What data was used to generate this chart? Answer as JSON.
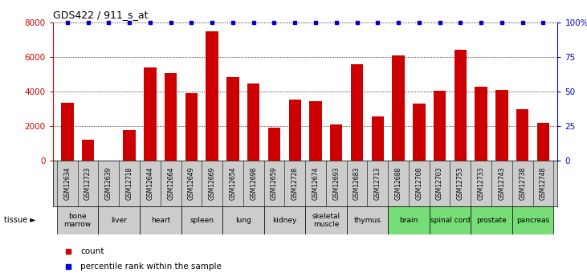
{
  "title": "GDS422 / 911_s_at",
  "samples": [
    "GSM12634",
    "GSM12723",
    "GSM12639",
    "GSM12718",
    "GSM12644",
    "GSM12664",
    "GSM12649",
    "GSM12669",
    "GSM12654",
    "GSM12698",
    "GSM12659",
    "GSM12728",
    "GSM12674",
    "GSM12693",
    "GSM12683",
    "GSM12713",
    "GSM12688",
    "GSM12708",
    "GSM12703",
    "GSM12753",
    "GSM12733",
    "GSM12743",
    "GSM12738",
    "GSM12748"
  ],
  "counts": [
    3350,
    1200,
    0,
    1750,
    5400,
    5050,
    3900,
    7450,
    4850,
    4450,
    1900,
    3550,
    3450,
    2100,
    5550,
    2550,
    6100,
    3300,
    4050,
    6400,
    4250,
    4100,
    2950,
    2200
  ],
  "percentiles": [
    100,
    100,
    100,
    100,
    100,
    100,
    100,
    100,
    100,
    100,
    100,
    100,
    100,
    100,
    100,
    100,
    100,
    100,
    100,
    100,
    100,
    100,
    100,
    100
  ],
  "tissues": [
    {
      "name": "bone\nmarrow",
      "start": 0,
      "end": 2,
      "color": "#cccccc"
    },
    {
      "name": "liver",
      "start": 2,
      "end": 4,
      "color": "#cccccc"
    },
    {
      "name": "heart",
      "start": 4,
      "end": 6,
      "color": "#cccccc"
    },
    {
      "name": "spleen",
      "start": 6,
      "end": 8,
      "color": "#cccccc"
    },
    {
      "name": "lung",
      "start": 8,
      "end": 10,
      "color": "#cccccc"
    },
    {
      "name": "kidney",
      "start": 10,
      "end": 12,
      "color": "#cccccc"
    },
    {
      "name": "skeletal\nmuscle",
      "start": 12,
      "end": 14,
      "color": "#cccccc"
    },
    {
      "name": "thymus",
      "start": 14,
      "end": 16,
      "color": "#cccccc"
    },
    {
      "name": "brain",
      "start": 16,
      "end": 18,
      "color": "#77dd77"
    },
    {
      "name": "spinal cord",
      "start": 18,
      "end": 20,
      "color": "#77dd77"
    },
    {
      "name": "prostate",
      "start": 20,
      "end": 22,
      "color": "#77dd77"
    },
    {
      "name": "pancreas",
      "start": 22,
      "end": 24,
      "color": "#77dd77"
    }
  ],
  "bar_color": "#cc0000",
  "percentile_color": "#0000cc",
  "ylim_left": [
    0,
    8000
  ],
  "ylim_right": [
    0,
    100
  ],
  "yticks_left": [
    0,
    2000,
    4000,
    6000,
    8000
  ],
  "yticks_right": [
    0,
    25,
    50,
    75,
    100
  ],
  "ytick_labels_left": [
    "0",
    "2000",
    "4000",
    "6000",
    "8000"
  ],
  "ytick_labels_right": [
    "0",
    "25",
    "50",
    "75",
    "100%"
  ],
  "bar_width": 0.6,
  "xlim": [
    -0.7,
    23.7
  ]
}
